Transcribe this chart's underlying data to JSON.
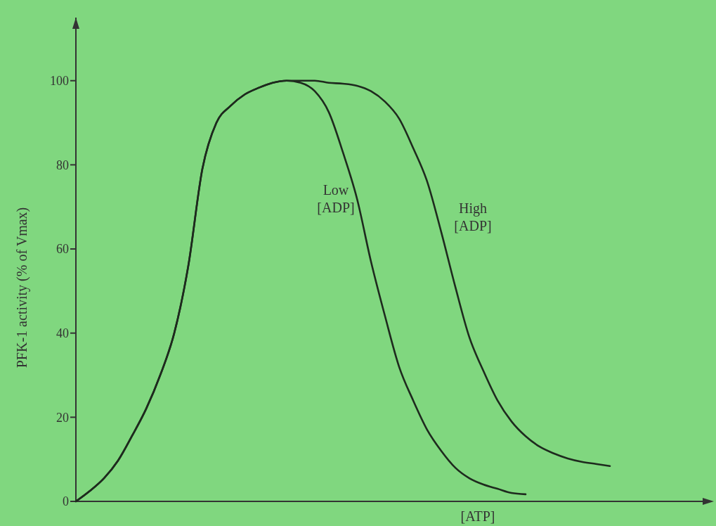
{
  "chart_data": {
    "type": "line",
    "xlabel": "[ATP]",
    "ylabel": "PFK-1 activity (% of Vmax)",
    "categories": [
      null,
      null,
      null,
      null,
      null,
      null,
      null,
      null,
      null,
      null,
      null,
      null,
      null,
      null,
      null,
      null,
      null,
      null,
      null,
      null,
      null,
      null,
      null,
      null,
      null,
      null,
      null,
      null,
      null,
      null,
      null,
      null,
      null,
      null,
      null,
      null,
      null,
      null,
      null,
      null,
      null,
      null,
      null,
      null,
      null
    ],
    "ylim": [
      0,
      115
    ],
    "yticks": [
      0,
      20,
      40,
      60,
      80,
      100
    ],
    "grid": false,
    "marker": "none",
    "line_style": "solid",
    "series": [
      {
        "name": "Low [ADP]",
        "color": "#1e2a1e",
        "values": [
          0,
          2.5,
          5.5,
          9.7,
          15.6,
          22,
          30,
          40,
          56,
          79,
          90,
          94,
          96.7,
          98.3,
          99.5,
          100,
          99.5,
          97.5,
          92.5,
          83,
          72,
          57,
          44,
          32,
          24,
          17,
          12,
          8,
          5.5,
          4,
          3,
          2,
          1.7,
          null,
          null,
          null,
          null,
          null,
          null,
          null,
          null,
          null,
          null,
          null,
          null
        ]
      },
      {
        "name": "High [ADP]",
        "color": "#1e2a1e",
        "values": [
          0,
          2.5,
          5.5,
          9.7,
          15.6,
          22,
          30,
          40,
          56,
          79,
          90,
          94,
          96.7,
          98.3,
          99.5,
          100,
          100,
          100,
          99.5,
          99.3,
          98.8,
          97.5,
          95,
          91,
          84,
          76,
          64,
          51,
          39,
          31,
          24,
          19,
          15.5,
          13,
          11.4,
          10.2,
          9.4,
          8.9,
          8.4,
          null,
          null,
          null,
          null,
          null,
          null
        ]
      }
    ]
  }
}
